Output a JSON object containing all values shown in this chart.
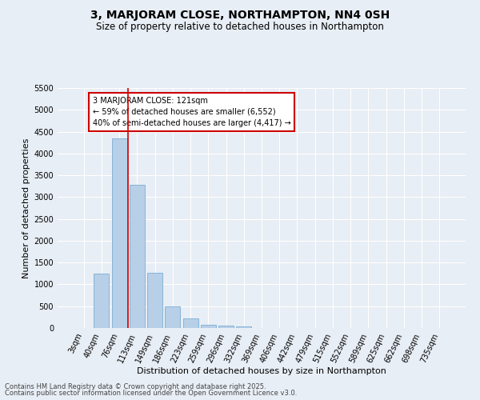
{
  "title": "3, MARJORAM CLOSE, NORTHAMPTON, NN4 0SH",
  "subtitle": "Size of property relative to detached houses in Northampton",
  "xlabel": "Distribution of detached houses by size in Northampton",
  "ylabel": "Number of detached properties",
  "categories": [
    "3sqm",
    "40sqm",
    "76sqm",
    "113sqm",
    "149sqm",
    "186sqm",
    "223sqm",
    "259sqm",
    "296sqm",
    "332sqm",
    "369sqm",
    "406sqm",
    "442sqm",
    "479sqm",
    "515sqm",
    "552sqm",
    "589sqm",
    "625sqm",
    "662sqm",
    "698sqm",
    "735sqm"
  ],
  "values": [
    0,
    1250,
    4350,
    3280,
    1260,
    500,
    220,
    80,
    50,
    30,
    0,
    0,
    0,
    0,
    0,
    0,
    0,
    0,
    0,
    0,
    0
  ],
  "bar_color": "#b8cfe8",
  "bar_edge_color": "#7aadd4",
  "vline_color": "#cc0000",
  "vline_pos": 2.5,
  "annotation_text": "3 MARJORAM CLOSE: 121sqm\n← 59% of detached houses are smaller (6,552)\n40% of semi-detached houses are larger (4,417) →",
  "annotation_box_color": "#ffffff",
  "annotation_box_edgecolor": "#cc0000",
  "ylim": [
    0,
    5500
  ],
  "yticks": [
    0,
    500,
    1000,
    1500,
    2000,
    2500,
    3000,
    3500,
    4000,
    4500,
    5000,
    5500
  ],
  "footnote1": "Contains HM Land Registry data © Crown copyright and database right 2025.",
  "footnote2": "Contains public sector information licensed under the Open Government Licence v3.0.",
  "bg_color": "#e8eef5",
  "plot_bg_color": "#e8eef5",
  "grid_color": "#ffffff",
  "title_fontsize": 10,
  "subtitle_fontsize": 8.5,
  "axis_label_fontsize": 8,
  "tick_fontsize": 7,
  "annotation_fontsize": 7,
  "footnote_fontsize": 6
}
